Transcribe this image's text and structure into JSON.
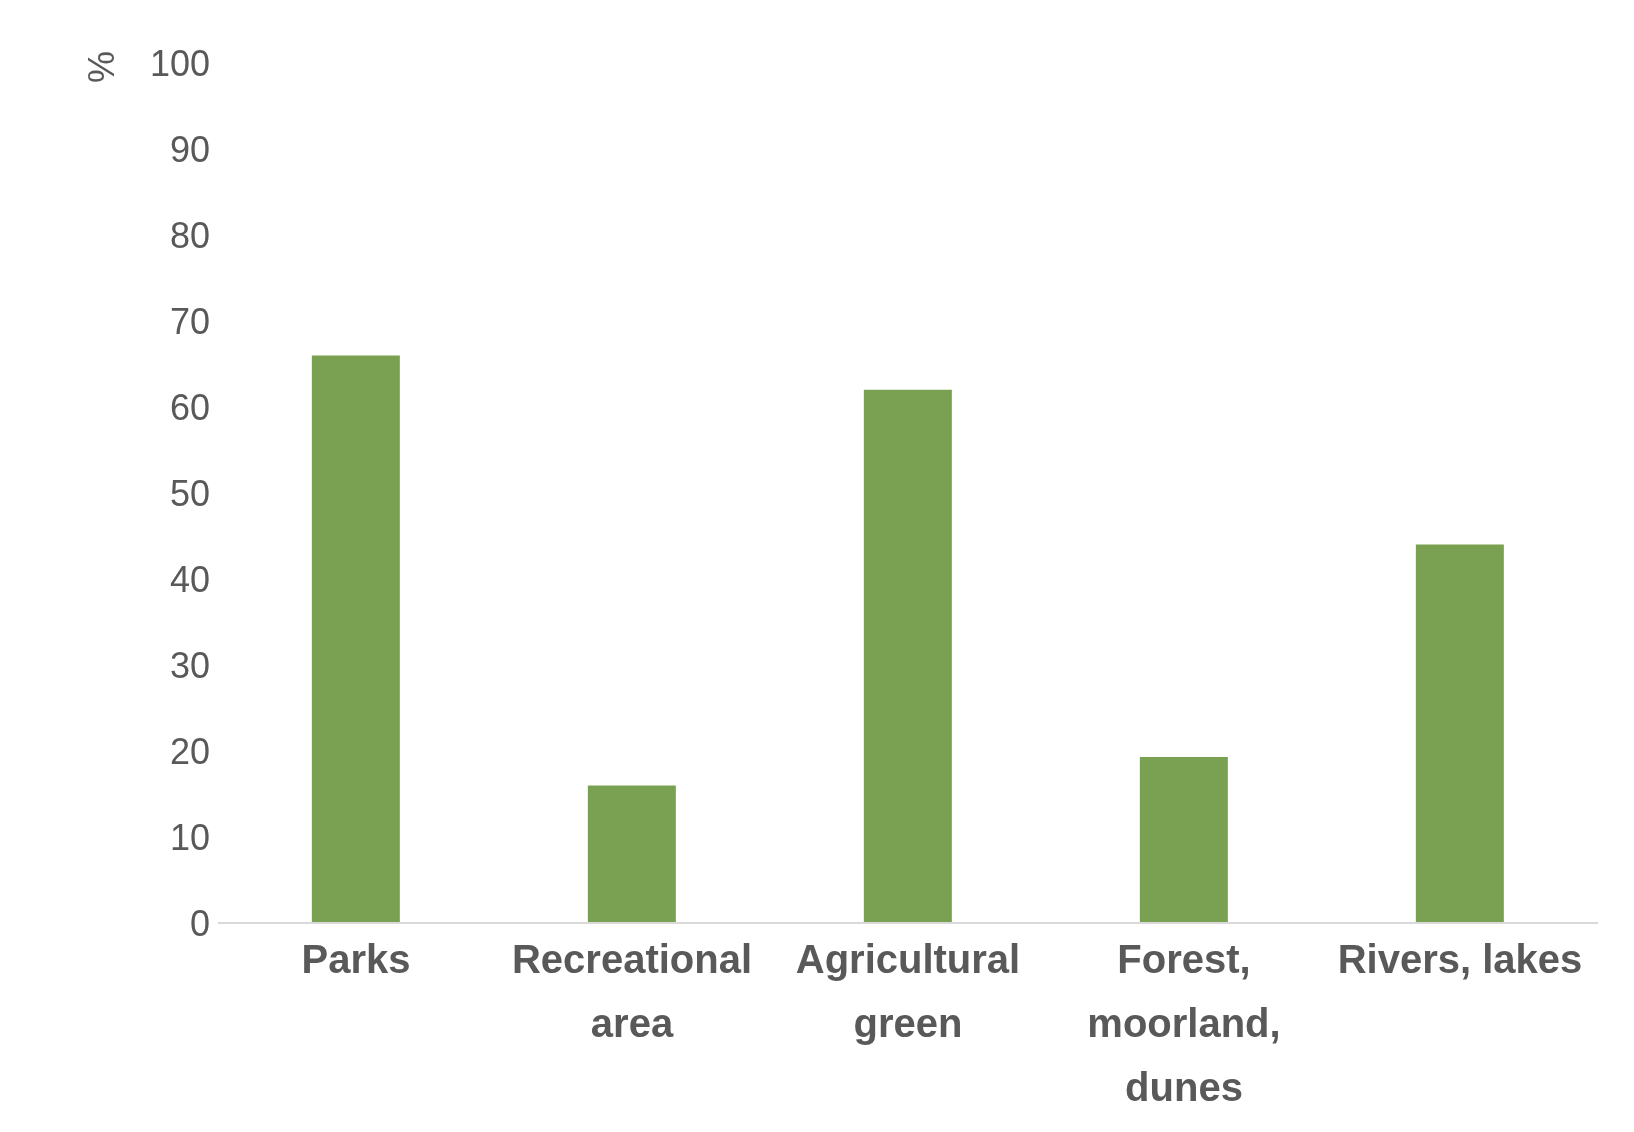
{
  "chart_data": {
    "type": "bar",
    "ylabel": "%",
    "categories": [
      "Parks",
      "Recreational area",
      "Agricultural green",
      "Forest, moorland, dunes",
      "Rivers, lakes"
    ],
    "values": [
      66,
      16,
      62,
      19.3,
      44
    ],
    "color": "#7aa152",
    "ylim": [
      0,
      100
    ],
    "yticks": [
      0,
      10,
      20,
      30,
      40,
      50,
      60,
      70,
      80,
      90,
      100
    ],
    "grid": false,
    "legend": false
  }
}
